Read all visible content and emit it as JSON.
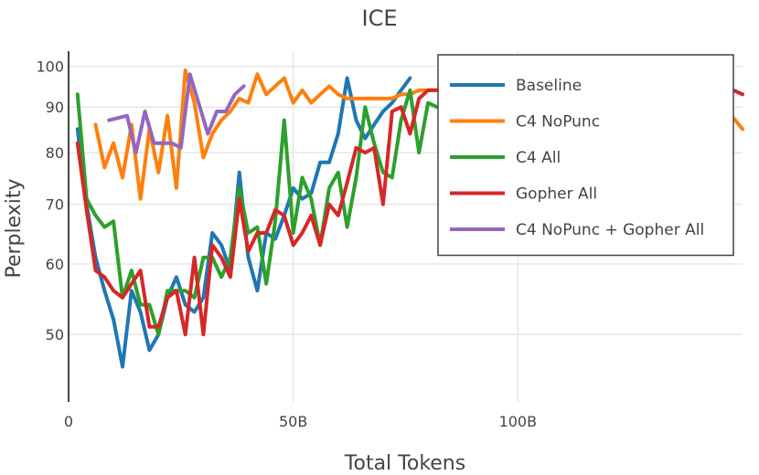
{
  "chart_data": {
    "type": "line",
    "title": "ICE",
    "xlabel": "Total Tokens",
    "ylabel": "Perplexity",
    "y_scale": "log",
    "xlim": [
      0,
      150
    ],
    "ylim": [
      42,
      104
    ],
    "x_unit": "B tokens",
    "x_ticks": [
      {
        "value": 0,
        "label": "0"
      },
      {
        "value": 50,
        "label": "50B"
      },
      {
        "value": 100,
        "label": "100B"
      }
    ],
    "y_ticks": [
      {
        "value": 50,
        "label": "50"
      },
      {
        "value": 60,
        "label": "60"
      },
      {
        "value": 70,
        "label": "70"
      },
      {
        "value": 80,
        "label": "80"
      },
      {
        "value": 90,
        "label": "90"
      },
      {
        "value": 100,
        "label": "100"
      }
    ],
    "grid": true,
    "legend": "top-right",
    "series": [
      {
        "name": "Baseline",
        "color": "#1f77b4",
        "x": [
          2,
          4,
          6,
          8,
          10,
          12,
          14,
          16,
          18,
          20,
          22,
          24,
          26,
          28,
          30,
          32,
          34,
          36,
          38,
          40,
          42,
          44,
          46,
          48,
          50,
          52,
          54,
          56,
          58,
          60,
          62,
          64,
          66,
          68,
          70,
          72,
          74,
          76
        ],
        "y": [
          85,
          70,
          61,
          56,
          52,
          46,
          56,
          53,
          48,
          50,
          55,
          58,
          54,
          53,
          55,
          65,
          63,
          59,
          76,
          61,
          56,
          65,
          64,
          68,
          73,
          71,
          72,
          78,
          78,
          84,
          97,
          87,
          83,
          86,
          89,
          91,
          94,
          97
        ]
      },
      {
        "name": "C4 NoPunc",
        "color": "#ff7f0e",
        "x": [
          6,
          8,
          10,
          12,
          14,
          16,
          18,
          20,
          22,
          24,
          26,
          28,
          30,
          32,
          34,
          36,
          38,
          40,
          42,
          44,
          46,
          48,
          50,
          52,
          54,
          56,
          58,
          60,
          62,
          64,
          66,
          68,
          70,
          72,
          74,
          76,
          78,
          80,
          82,
          146,
          150
        ],
        "y": [
          86,
          77,
          82,
          75,
          86,
          71,
          85,
          76,
          88,
          73,
          99,
          91,
          79,
          84,
          87,
          89,
          92,
          91,
          98,
          93,
          95,
          97,
          91,
          94,
          91,
          93,
          95,
          93,
          92,
          92,
          92,
          92,
          92,
          92,
          93,
          93,
          94,
          94,
          94,
          90,
          85
        ]
      },
      {
        "name": "C4 All",
        "color": "#2ca02c",
        "x": [
          2,
          4,
          6,
          8,
          10,
          12,
          14,
          16,
          18,
          20,
          22,
          24,
          26,
          28,
          30,
          32,
          34,
          36,
          38,
          40,
          42,
          44,
          46,
          48,
          50,
          52,
          54,
          56,
          58,
          60,
          62,
          64,
          66,
          68,
          70,
          72,
          74,
          76,
          78,
          80,
          82
        ],
        "y": [
          93,
          71,
          68,
          66,
          67,
          55,
          59,
          54,
          54,
          50,
          56,
          56,
          56,
          55,
          61,
          61,
          58,
          61,
          73,
          65,
          66,
          57,
          67,
          87,
          65,
          75,
          71,
          63,
          73,
          76,
          66,
          75,
          90,
          82,
          76,
          75,
          87,
          94,
          80,
          91,
          90
        ]
      },
      {
        "name": "Gopher All",
        "color": "#d62728",
        "x": [
          2,
          4,
          6,
          8,
          10,
          12,
          14,
          16,
          18,
          20,
          22,
          24,
          26,
          28,
          30,
          32,
          34,
          36,
          38,
          40,
          42,
          44,
          46,
          48,
          50,
          52,
          54,
          56,
          58,
          60,
          62,
          64,
          66,
          68,
          70,
          72,
          74,
          76,
          78,
          80,
          82,
          148,
          150
        ],
        "y": [
          82,
          69,
          59,
          58,
          56,
          55,
          57,
          59,
          51,
          51,
          55,
          56,
          50,
          61,
          50,
          63,
          61,
          58,
          71,
          62,
          65,
          65,
          69,
          68,
          63,
          65,
          68,
          63,
          70,
          68,
          74,
          81,
          80,
          81,
          70,
          89,
          90,
          84,
          92,
          94,
          94,
          94,
          93
        ]
      },
      {
        "name": "C4 NoPunc + Gopher All",
        "color": "#9467bd",
        "x": [
          9,
          13,
          15,
          17,
          19,
          23,
          25,
          27,
          31,
          33,
          35,
          37,
          39
        ],
        "y": [
          87,
          88,
          80,
          89,
          82,
          82,
          81,
          98,
          84,
          89,
          89,
          93,
          95
        ]
      }
    ]
  }
}
